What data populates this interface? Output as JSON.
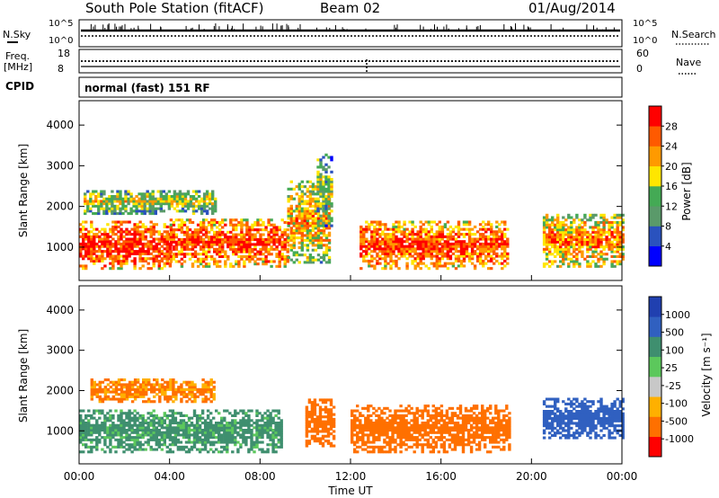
{
  "header": {
    "station": "South Pole Station (fitACF)",
    "beam": "Beam 02",
    "date": "01/Aug/2014"
  },
  "top_panels": {
    "nsky_label": "N.Sky",
    "nsearch_label": "N.Search",
    "noise_ticks_left": [
      "10^5",
      "10^0"
    ],
    "noise_ticks_right": [
      "10^5",
      "10^0"
    ],
    "freq_label": "Freq.",
    "freq_unit": "[MHz]",
    "freq_ticks": [
      "18",
      "8"
    ],
    "nave_ticks": [
      "60",
      "0"
    ],
    "nave_label": "Nave",
    "cpid_label": "CPID",
    "cpid_text": "normal (fast) 151 RF"
  },
  "colors": {
    "power_scale": [
      "#0000ff",
      "#2a52be",
      "#5a9a6a",
      "#44aa55",
      "#ffe600",
      "#ff9a00",
      "#ff5a00",
      "#ff0000"
    ],
    "velocity_scale": [
      "#ff0000",
      "#ff7000",
      "#ffb000",
      "#c8c8c8",
      "#5cc85c",
      "#3f8f6f",
      "#3060c0",
      "#2040b0"
    ]
  },
  "chart_data": [
    {
      "type": "heatmap",
      "name": "power",
      "ylabel": "Slant Range [km]",
      "y_ticks": [
        "4000",
        "3000",
        "2000",
        "1000"
      ],
      "ylim": [
        180,
        4600
      ],
      "colorbar_label": "Power [dB]",
      "colorbar_ticks": [
        "28",
        "24",
        "20",
        "16",
        "12",
        "8",
        "4"
      ],
      "bands": [
        {
          "t0": 0.0,
          "t1": 4.0,
          "r0": 450,
          "r1": 1600,
          "value": 22
        },
        {
          "t0": 4.0,
          "t1": 9.2,
          "r0": 500,
          "r1": 1700,
          "value": 20
        },
        {
          "t0": 9.2,
          "t1": 11.0,
          "r0": 600,
          "r1": 2600,
          "value": 14
        },
        {
          "t0": 12.4,
          "t1": 19.0,
          "r0": 450,
          "r1": 1600,
          "value": 20
        },
        {
          "t0": 20.5,
          "t1": 24.0,
          "r0": 500,
          "r1": 1800,
          "value": 16
        },
        {
          "t0": 0.2,
          "t1": 6.0,
          "r0": 1800,
          "r1": 2400,
          "value": 10
        },
        {
          "t0": 10.5,
          "t1": 11.1,
          "r0": 1500,
          "r1": 3300,
          "value": 8
        }
      ]
    },
    {
      "type": "heatmap",
      "name": "velocity",
      "xlabel": "Time UT",
      "x_ticks": [
        "00:00",
        "04:00",
        "08:00",
        "12:00",
        "16:00",
        "20:00",
        "00:00"
      ],
      "ylabel": "Slant Range [km]",
      "y_ticks": [
        "4000",
        "3000",
        "2000",
        "1000"
      ],
      "ylim": [
        180,
        4600
      ],
      "xlim": [
        0,
        24
      ],
      "colorbar_label": "Velocity [m s⁻¹]",
      "colorbar_ticks": [
        "1000",
        "500",
        "100",
        "25",
        "-25",
        "-100",
        "-500",
        "-1000"
      ],
      "bands": [
        {
          "t0": 0.0,
          "t1": 9.0,
          "r0": 450,
          "r1": 1500,
          "value": 150
        },
        {
          "t0": 0.5,
          "t1": 6.0,
          "r0": 1700,
          "r1": 2300,
          "value": -120
        },
        {
          "t0": 10.0,
          "t1": 11.2,
          "r0": 600,
          "r1": 1800,
          "value": -300
        },
        {
          "t0": 12.0,
          "t1": 19.0,
          "r0": 450,
          "r1": 1600,
          "value": -200
        },
        {
          "t0": 20.5,
          "t1": 24.0,
          "r0": 800,
          "r1": 1800,
          "value": 700
        }
      ]
    }
  ]
}
